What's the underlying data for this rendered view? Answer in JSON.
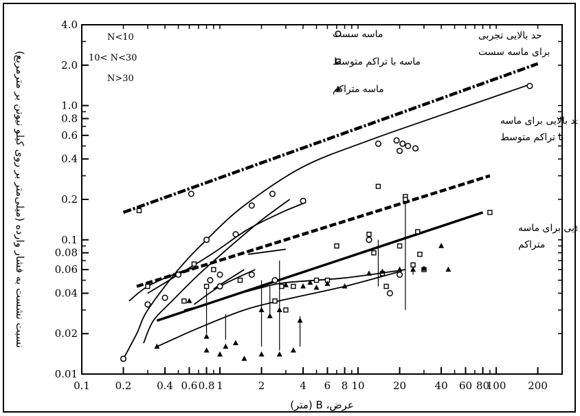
{
  "chart_data": {
    "type": "scatter",
    "title": "",
    "xlabel": "عرض، B (متر)",
    "ylabel": "نسبت نشست به فشار وارده (میلی‌متر بر روی کیلو نیوتن بر مترمربع)",
    "x_scale": "log",
    "y_scale": "log",
    "xlim": [
      0.1,
      300
    ],
    "ylim": [
      0.01,
      4.0
    ],
    "grid": false,
    "x_tick_labels": [
      "0.1",
      "0.2",
      "0.4",
      "0.6",
      "0.8",
      "1",
      "2",
      "4",
      "6",
      "8",
      "10",
      "20",
      "40",
      "60",
      "80",
      "100",
      "200"
    ],
    "y_tick_labels": [
      "0.01",
      "0.02",
      "0.04",
      "0.06",
      "0.08",
      "0.1",
      "0.2",
      "0.4",
      "0.6",
      "0.8",
      "1.0",
      "2.0",
      "4.0"
    ],
    "x_tick_values": [
      0.1,
      0.2,
      0.4,
      0.6,
      0.8,
      1,
      2,
      4,
      6,
      8,
      10,
      20,
      40,
      60,
      80,
      100,
      200
    ],
    "y_tick_values": [
      0.01,
      0.02,
      0.04,
      0.06,
      0.08,
      0.1,
      0.2,
      0.4,
      0.6,
      0.8,
      1.0,
      2.0,
      4.0
    ],
    "n_labels": [
      "N<10",
      "10< N<30",
      "N>30"
    ],
    "legend": [
      {
        "label": "ماسه سست",
        "marker": "circle"
      },
      {
        "label": "ماسه با تراکم متوسط",
        "marker": "square"
      },
      {
        "label": "ماسه متراکم",
        "marker": "triangle"
      }
    ],
    "annotations": [
      {
        "lines": [
          "حد بالایی تجربی",
          "برای ماسه سست"
        ]
      },
      {
        "lines": [
          "حد بالایی برای ماسه",
          "با تراکم متوسط"
        ]
      },
      {
        "lines": [
          "حد بالایی برای ماسه",
          "متراکم"
        ]
      }
    ],
    "upper_limits": [
      {
        "name": "حد بالایی تجربی برای ماسه سست",
        "style": "dash-dot",
        "points": [
          [
            0.2,
            0.16
          ],
          [
            200,
            2.05
          ]
        ]
      },
      {
        "name": "حد بالایی برای ماسه با تراکم متوسط",
        "style": "dashed",
        "points": [
          [
            0.25,
            0.045
          ],
          [
            90,
            0.3
          ]
        ]
      },
      {
        "name": "حد بالایی برای ماسه متراکم",
        "style": "solid-thick",
        "points": [
          [
            0.35,
            0.025
          ],
          [
            80,
            0.16
          ]
        ]
      }
    ],
    "curves": [
      {
        "points": [
          [
            0.2,
            0.013
          ],
          [
            0.25,
            0.02
          ],
          [
            0.3,
            0.03
          ],
          [
            0.5,
            0.06
          ],
          [
            0.8,
            0.1
          ],
          [
            1.5,
            0.18
          ],
          [
            4,
            0.35
          ],
          [
            12,
            0.55
          ],
          [
            40,
            0.85
          ],
          [
            180,
            1.45
          ]
        ]
      },
      {
        "points": [
          [
            0.28,
            0.017
          ],
          [
            0.33,
            0.025
          ],
          [
            0.45,
            0.035
          ],
          [
            0.7,
            0.055
          ],
          [
            1.2,
            0.09
          ],
          [
            2.0,
            0.14
          ],
          [
            3.2,
            0.2
          ]
        ]
      },
      {
        "points": [
          [
            0.3,
            0.04
          ],
          [
            0.5,
            0.055
          ],
          [
            0.9,
            0.08
          ],
          [
            1.6,
            0.12
          ],
          [
            2.8,
            0.16
          ],
          [
            4.2,
            0.19
          ]
        ]
      },
      {
        "points": [
          [
            0.22,
            0.035
          ],
          [
            0.3,
            0.045
          ],
          [
            0.5,
            0.057
          ],
          [
            0.7,
            0.063
          ]
        ]
      },
      {
        "points": [
          [
            0.55,
            0.03
          ],
          [
            0.8,
            0.033
          ],
          [
            1.2,
            0.038
          ],
          [
            2.0,
            0.044
          ],
          [
            3.0,
            0.048
          ],
          [
            8.0,
            0.052
          ],
          [
            22,
            0.06
          ]
        ]
      },
      {
        "points": [
          [
            0.35,
            0.016
          ],
          [
            0.7,
            0.022
          ],
          [
            1.5,
            0.03
          ],
          [
            3.0,
            0.036
          ],
          [
            8,
            0.045
          ],
          [
            20,
            0.058
          ]
        ]
      },
      {
        "points": [
          [
            0.65,
            0.033
          ],
          [
            1.0,
            0.045
          ],
          [
            1.8,
            0.06
          ]
        ]
      },
      {
        "points": [
          [
            1.6,
            0.078
          ],
          [
            3.0,
            0.085
          ]
        ]
      },
      {
        "points": [
          [
            0.9,
            0.043
          ],
          [
            1.2,
            0.052
          ],
          [
            1.5,
            0.06
          ]
        ]
      }
    ],
    "series": [
      {
        "name": "ماسه سست",
        "marker": "circle",
        "points": [
          [
            0.2,
            0.013
          ],
          [
            0.3,
            0.033
          ],
          [
            0.4,
            0.037
          ],
          [
            0.5,
            0.055
          ],
          [
            0.62,
            0.22
          ],
          [
            0.8,
            0.1
          ],
          [
            0.85,
            0.05
          ],
          [
            1.0,
            0.055
          ],
          [
            1.3,
            0.11
          ],
          [
            1.7,
            0.18
          ],
          [
            2.4,
            0.22
          ],
          [
            4.0,
            0.195
          ],
          [
            2.5,
            0.05
          ],
          [
            1.7,
            0.055
          ],
          [
            1.0,
            0.045
          ],
          [
            14,
            0.52
          ],
          [
            19,
            0.55
          ],
          [
            20,
            0.46
          ],
          [
            21,
            0.52
          ],
          [
            23,
            0.5
          ],
          [
            26,
            0.48
          ],
          [
            12,
            0.1
          ],
          [
            17,
            0.04
          ],
          [
            20,
            0.055
          ],
          [
            175,
            1.4
          ]
        ]
      },
      {
        "name": "ماسه با تراکم متوسط",
        "marker": "square",
        "points": [
          [
            0.26,
            0.165
          ],
          [
            0.3,
            0.045
          ],
          [
            0.55,
            0.035
          ],
          [
            0.65,
            0.066
          ],
          [
            0.8,
            0.045
          ],
          [
            0.9,
            0.06
          ],
          [
            1.4,
            0.05
          ],
          [
            2.8,
            0.045
          ],
          [
            2.5,
            0.035
          ],
          [
            3.0,
            0.03
          ],
          [
            3.4,
            0.045
          ],
          [
            5.0,
            0.05
          ],
          [
            6.0,
            0.05
          ],
          [
            7.0,
            0.09
          ],
          [
            12,
            0.11
          ],
          [
            13,
            0.08
          ],
          [
            15,
            0.056
          ],
          [
            16,
            0.045
          ],
          [
            20,
            0.09
          ],
          [
            22,
            0.21
          ],
          [
            25,
            0.065
          ],
          [
            27,
            0.115
          ],
          [
            28,
            0.078
          ],
          [
            30,
            0.06
          ],
          [
            90,
            0.16
          ],
          [
            14,
            0.25
          ],
          [
            22,
            0.2
          ]
        ]
      },
      {
        "name": "ماسه متراکم",
        "marker": "triangle",
        "points": [
          [
            0.35,
            0.016
          ],
          [
            0.6,
            0.035
          ],
          [
            0.8,
            0.015
          ],
          [
            0.8,
            0.019
          ],
          [
            1.0,
            0.014
          ],
          [
            1.1,
            0.016
          ],
          [
            1.3,
            0.017
          ],
          [
            1.5,
            0.013
          ],
          [
            2.0,
            0.014
          ],
          [
            2.0,
            0.03
          ],
          [
            2.3,
            0.027
          ],
          [
            2.7,
            0.014
          ],
          [
            2.7,
            0.03
          ],
          [
            3.0,
            0.046
          ],
          [
            3.4,
            0.015
          ],
          [
            3.8,
            0.025
          ],
          [
            4.0,
            0.045
          ],
          [
            4.5,
            0.048
          ],
          [
            5.0,
            0.044
          ],
          [
            6.0,
            0.047
          ],
          [
            8.0,
            0.045
          ],
          [
            12,
            0.056
          ],
          [
            15,
            0.058
          ],
          [
            20,
            0.06
          ],
          [
            25,
            0.06
          ],
          [
            30,
            0.061
          ],
          [
            40,
            0.09
          ],
          [
            45,
            0.06
          ]
        ]
      }
    ]
  }
}
